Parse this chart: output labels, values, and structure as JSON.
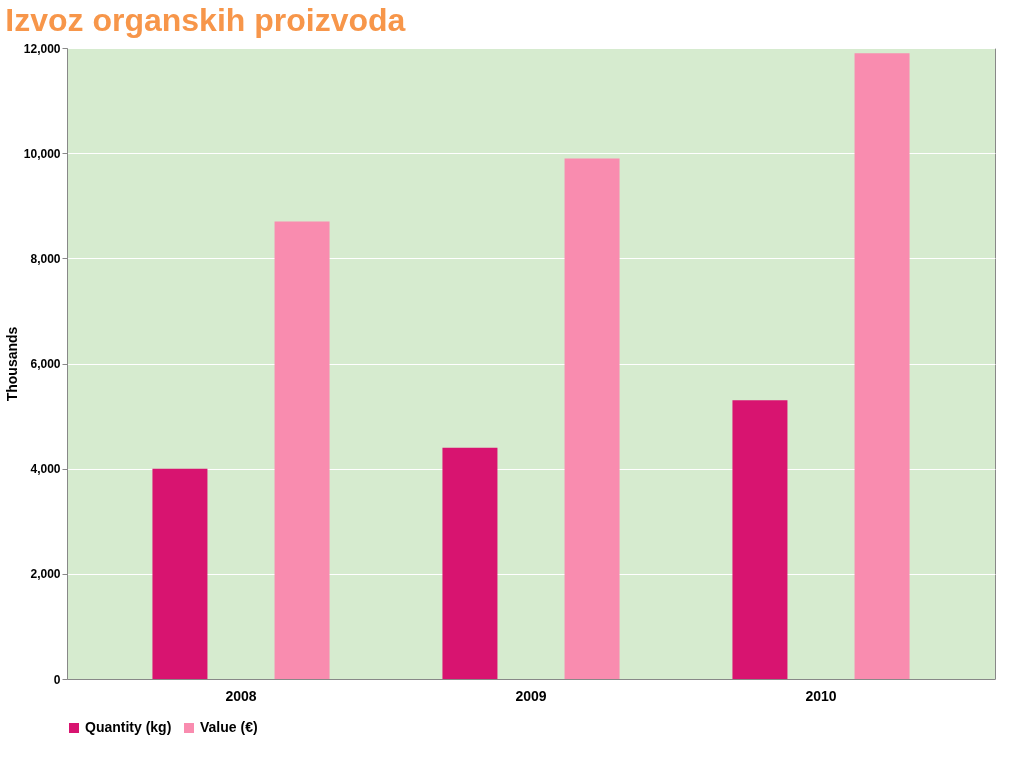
{
  "chart_data": {
    "type": "bar",
    "title": "Izvoz organskih proizvoda",
    "ylabel": "Thousands",
    "categories": [
      "2008",
      "2009",
      "2010"
    ],
    "series": [
      {
        "name": "Quantity (kg)",
        "color": "#d81470",
        "values": [
          4000,
          4400,
          5300
        ]
      },
      {
        "name": "Value (€)",
        "color": "#f98caf",
        "values": [
          8700,
          9900,
          11900
        ]
      }
    ],
    "ylim": [
      0,
      12000
    ],
    "yticks": [
      0,
      {
        "value": 2000,
        "label": "2,000"
      },
      {
        "value": 4000,
        "label": "4,000"
      },
      {
        "value": 6000,
        "label": "6,000"
      },
      {
        "value": 8000,
        "label": "8,000"
      },
      {
        "value": 10000,
        "label": "10,000"
      },
      {
        "value": 12000,
        "label": "12,000"
      }
    ],
    "grid": "y",
    "legend": "bottom left"
  }
}
